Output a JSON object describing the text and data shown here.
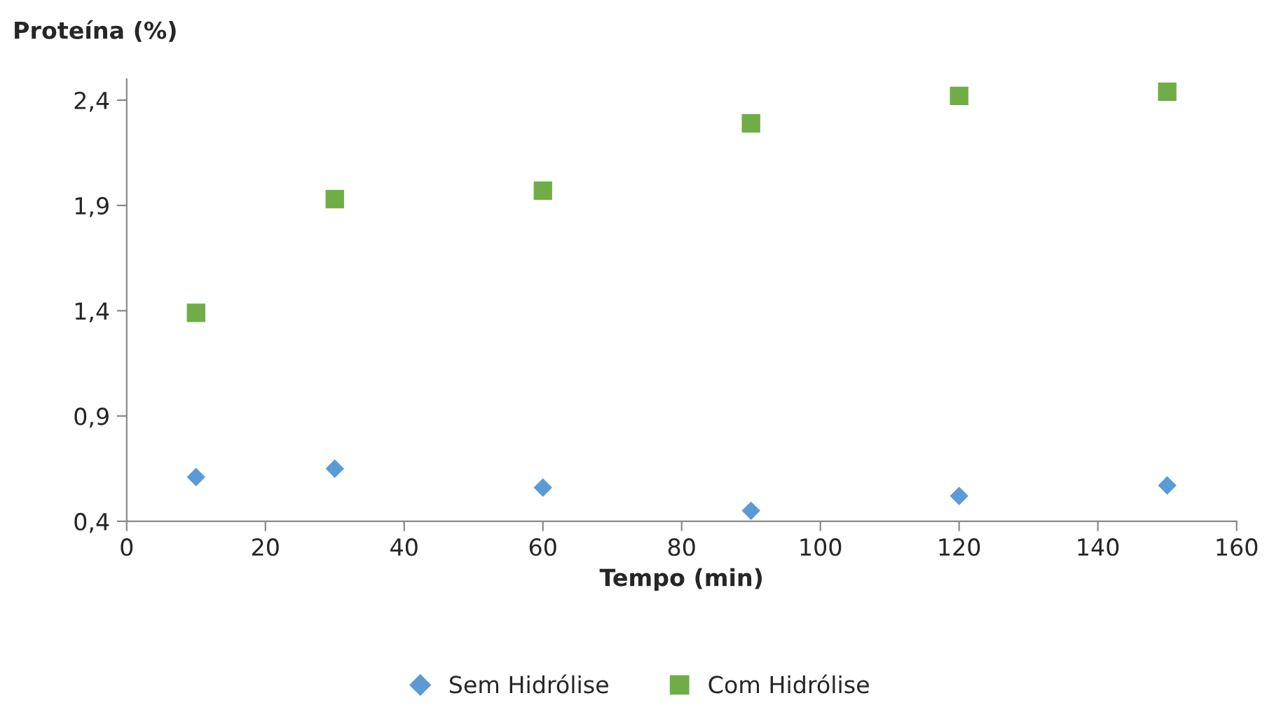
{
  "chart_data": {
    "type": "scatter",
    "xlabel": "Tempo (min)",
    "ylabel": "Proteína (%)",
    "x": [
      10,
      30,
      60,
      90,
      120,
      150
    ],
    "series": [
      {
        "name": "Sem Hidrólise",
        "color": "#5b9bd5",
        "marker": "diamond",
        "values": [
          0.61,
          0.65,
          0.56,
          0.45,
          0.52,
          0.57
        ]
      },
      {
        "name": "Com Hidrólise",
        "color": "#70ad47",
        "marker": "square",
        "values": [
          1.39,
          1.93,
          1.97,
          2.29,
          2.42,
          2.44
        ]
      }
    ],
    "xlim": [
      0,
      160
    ],
    "xticks": [
      0,
      20,
      40,
      60,
      80,
      100,
      120,
      140,
      160
    ],
    "ylim": [
      0.4,
      2.5
    ],
    "yticks": [
      {
        "value": 0.4,
        "label": "0,4"
      },
      {
        "value": 0.9,
        "label": "0,9"
      },
      {
        "value": 1.4,
        "label": "1,4"
      },
      {
        "value": 1.9,
        "label": "1,9"
      },
      {
        "value": 2.4,
        "label": "2,4"
      }
    ],
    "grid": false,
    "legend": "bottom"
  }
}
